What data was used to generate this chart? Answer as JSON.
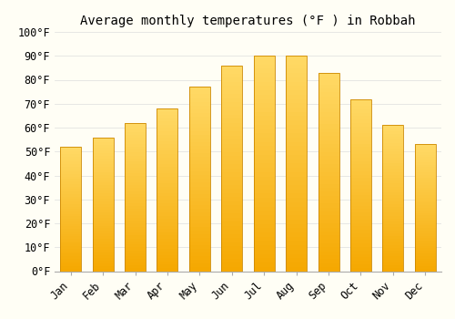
{
  "title": "Average monthly temperatures (°F ) in Robbah",
  "months": [
    "Jan",
    "Feb",
    "Mar",
    "Apr",
    "May",
    "Jun",
    "Jul",
    "Aug",
    "Sep",
    "Oct",
    "Nov",
    "Dec"
  ],
  "values": [
    52,
    56,
    62,
    68,
    77,
    86,
    90,
    90,
    83,
    72,
    61,
    53
  ],
  "color_bottom": "#F5A800",
  "color_top": "#FFD966",
  "ylim": [
    0,
    100
  ],
  "yticks": [
    0,
    10,
    20,
    30,
    40,
    50,
    60,
    70,
    80,
    90,
    100
  ],
  "ytick_labels": [
    "0°F",
    "10°F",
    "20°F",
    "30°F",
    "40°F",
    "50°F",
    "60°F",
    "70°F",
    "80°F",
    "90°F",
    "100°F"
  ],
  "background_color": "#FFFEF5",
  "grid_color": "#DDDDDD",
  "title_fontsize": 10,
  "tick_fontsize": 8.5,
  "bar_edge_color": "#CC8800",
  "bar_width": 0.65,
  "n_grad": 50
}
